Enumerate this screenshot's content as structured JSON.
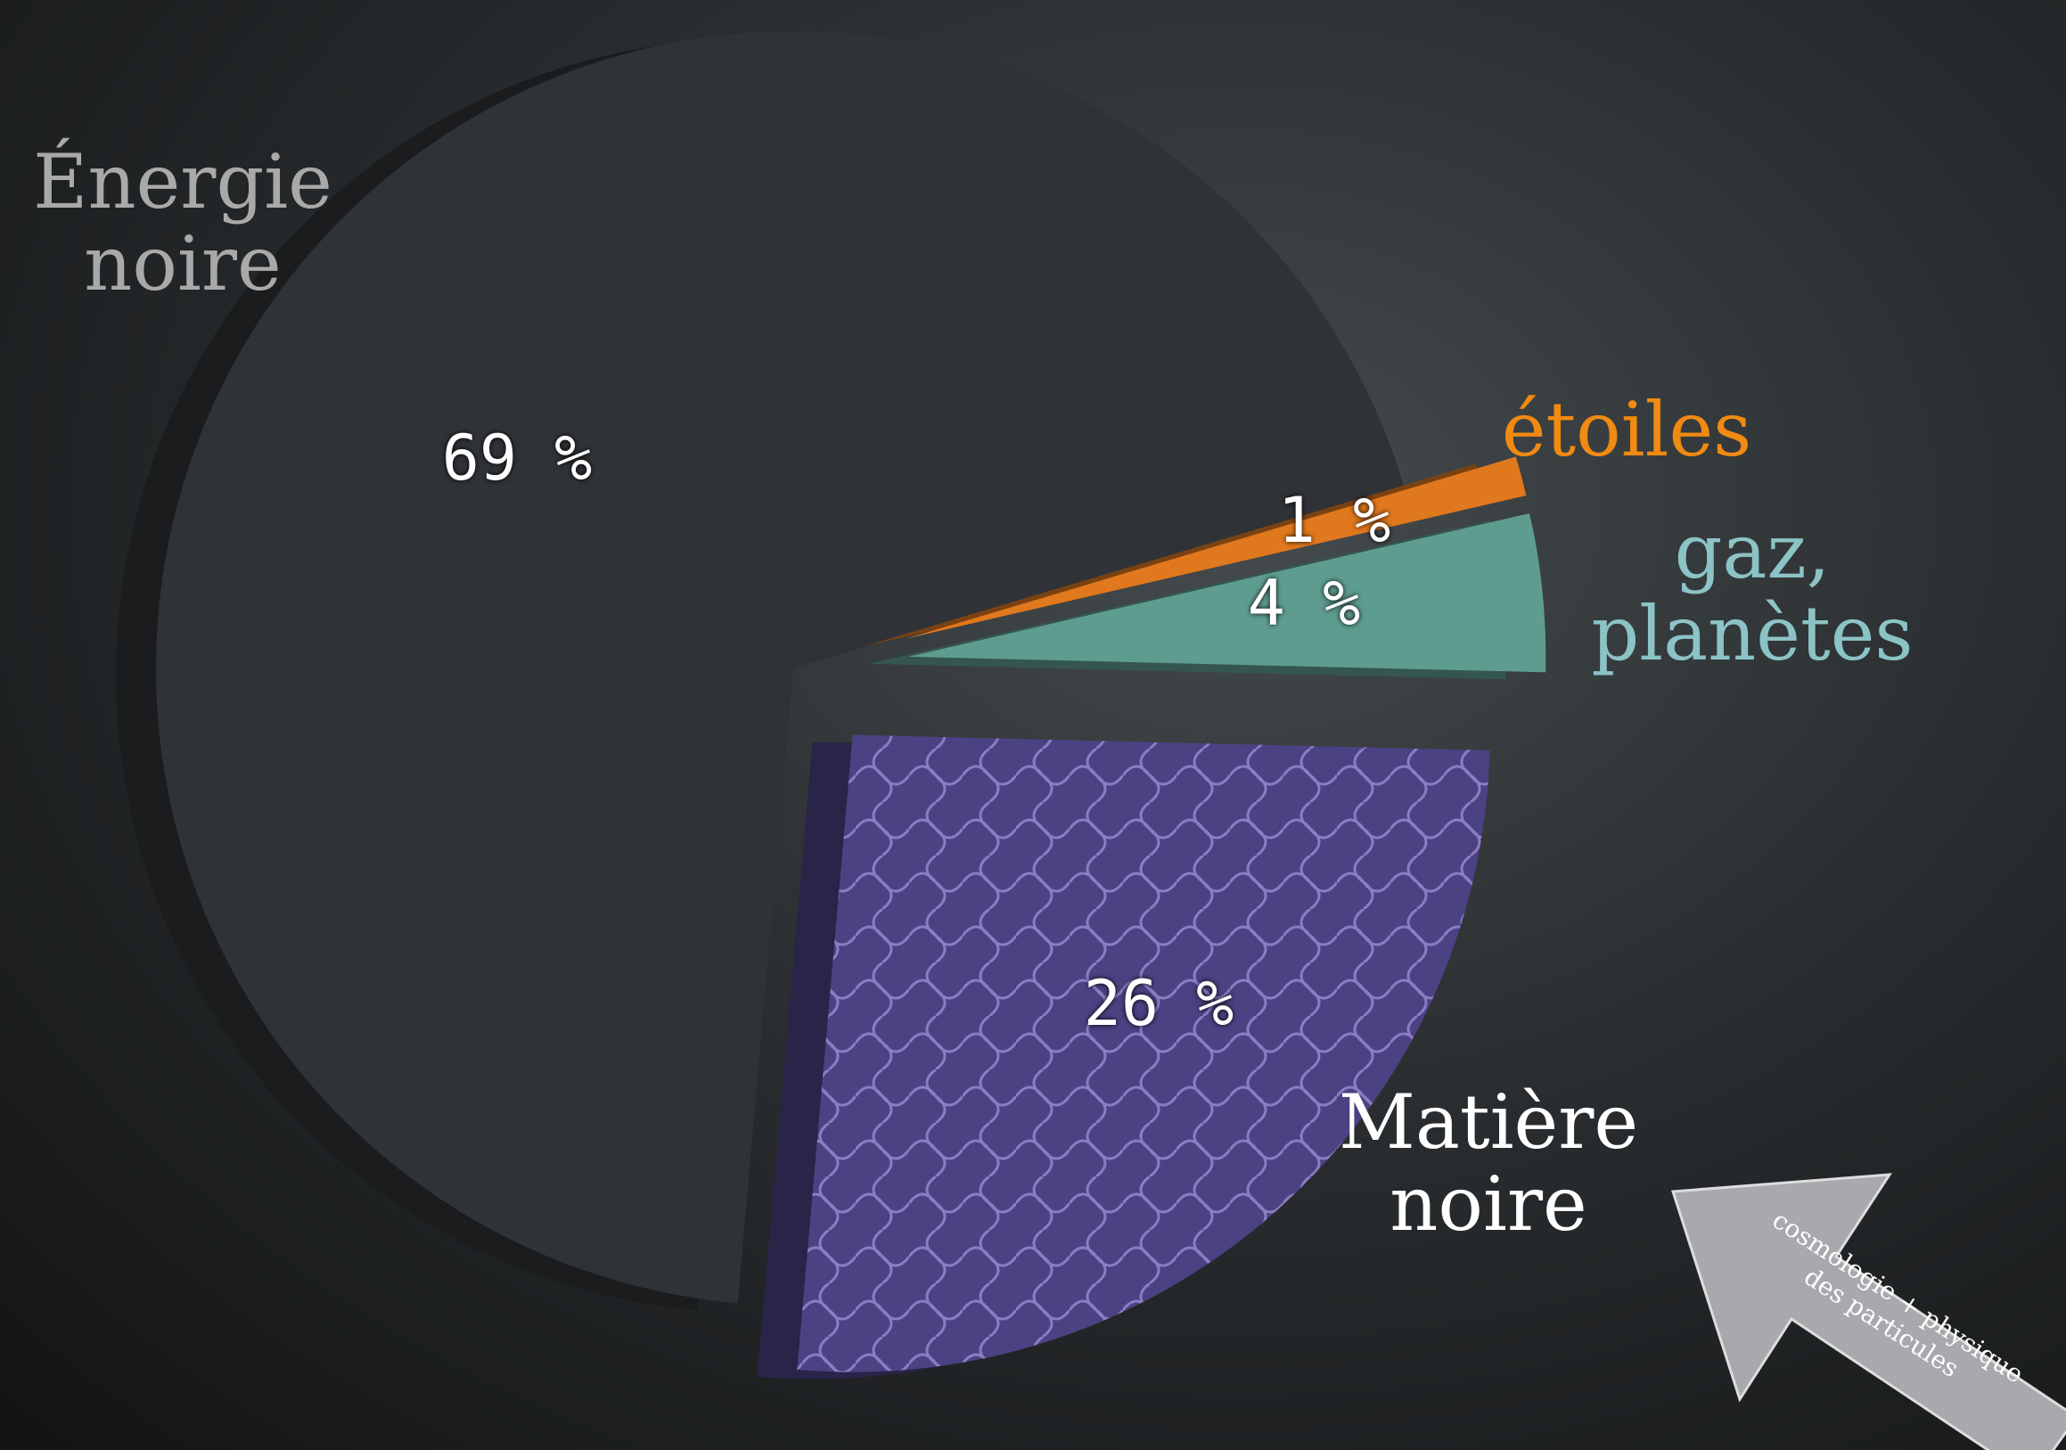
{
  "chart_data": {
    "type": "pie",
    "categories": [
      "Énergie noire",
      "étoiles",
      "gaz, planètes",
      "Matière noire"
    ],
    "values": [
      69,
      1,
      4,
      26
    ],
    "value_labels": [
      "69 %",
      "1 %",
      "4 %",
      "26 %"
    ],
    "colors": [
      "#2f3337",
      "#e0781e",
      "#5f9c90",
      "#4b4283"
    ],
    "label_colors": [
      "#a9a9a9",
      "#f08a12",
      "#8cc3c6",
      "#ffffff"
    ],
    "annotation": "cosmologie + physique des particules"
  }
}
